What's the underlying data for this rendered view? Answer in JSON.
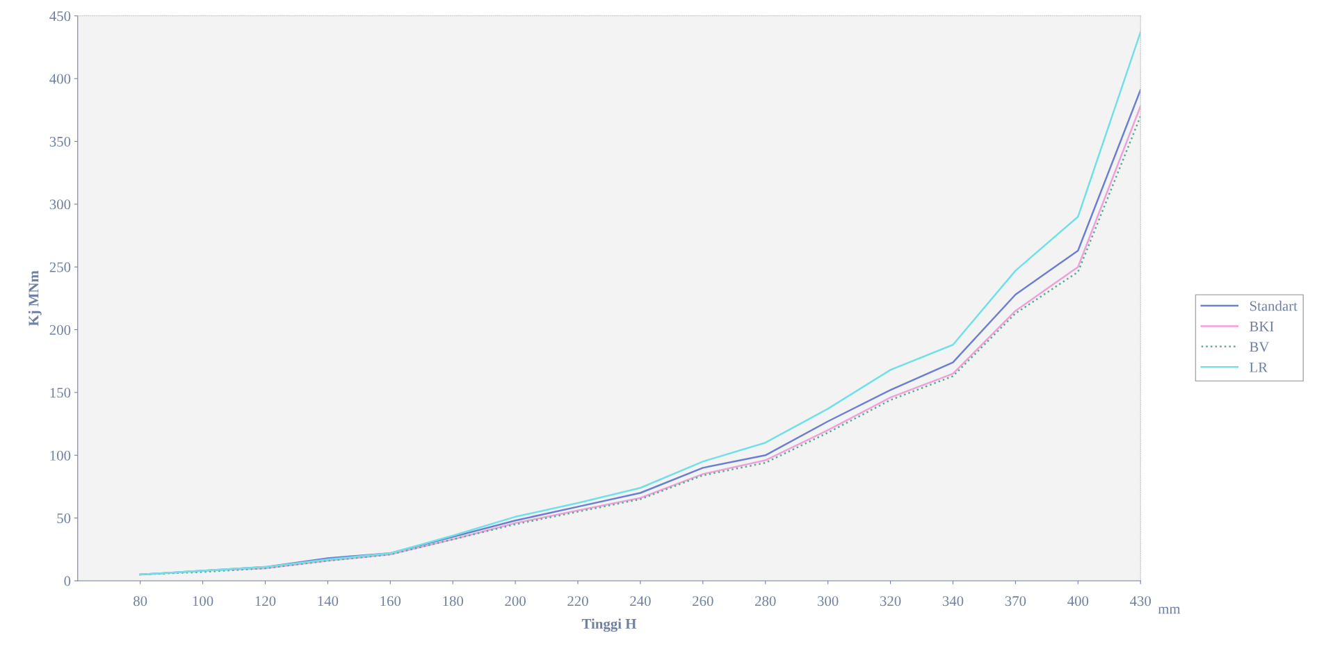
{
  "chart_data": {
    "type": "line",
    "xlabel": "Tinggi H",
    "ylabel": "Kj MNm",
    "annotations": [
      "mm"
    ],
    "categories": [
      "80",
      "100",
      "120",
      "140",
      "160",
      "180",
      "200",
      "220",
      "240",
      "260",
      "280",
      "300",
      "320",
      "340",
      "370",
      "400",
      "430"
    ],
    "series": [
      {
        "name": "Standart",
        "color": "#6b7fd0",
        "values": [
          5,
          8,
          11,
          18,
          22,
          35,
          48,
          59,
          70,
          90,
          100,
          127,
          152,
          174,
          228,
          263,
          391
        ]
      },
      {
        "name": "BKI",
        "color": "#f0a0d8",
        "values": [
          5,
          8,
          10,
          16,
          21,
          33,
          46,
          56,
          66,
          85,
          96,
          120,
          146,
          165,
          215,
          250,
          378
        ]
      },
      {
        "name": "BV",
        "color": "#50b090",
        "line_style": "dotted",
        "values": [
          5,
          7,
          10,
          16,
          21,
          33,
          45,
          55,
          65,
          84,
          94,
          118,
          144,
          163,
          213,
          246,
          370
        ]
      },
      {
        "name": "LR",
        "color": "#70e0e8",
        "values": [
          5,
          8,
          11,
          17,
          22,
          36,
          51,
          62,
          74,
          95,
          110,
          137,
          168,
          188,
          247,
          290,
          437
        ]
      }
    ],
    "ylim": [
      0,
      450
    ],
    "yticks": [
      0,
      50,
      100,
      150,
      200,
      250,
      300,
      350,
      400,
      450
    ],
    "legend": "right",
    "grid": false,
    "marker": "none",
    "line_style": "solid"
  }
}
